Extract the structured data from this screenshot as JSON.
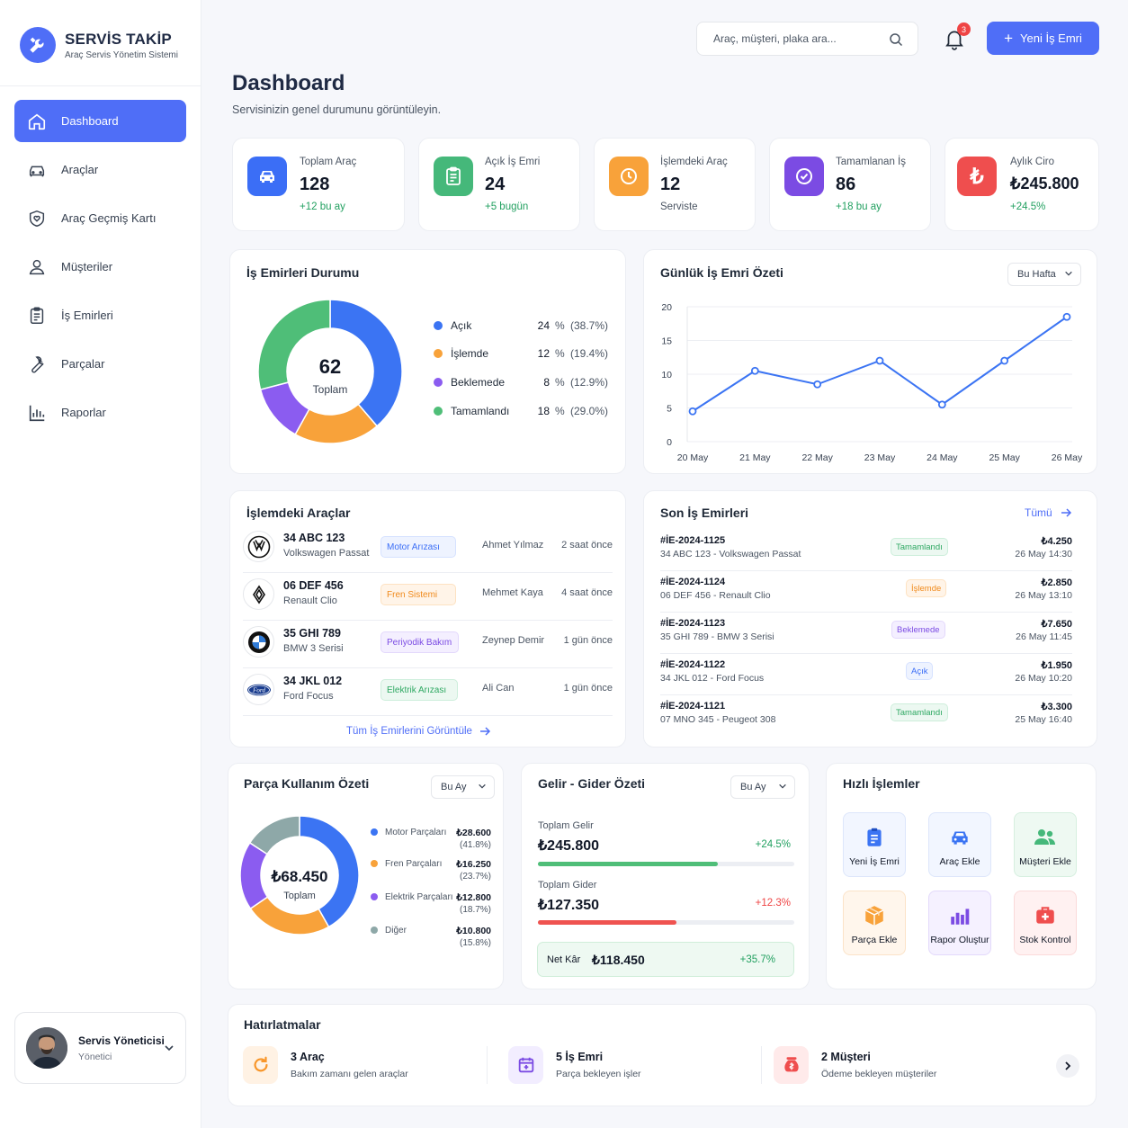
{
  "brand": {
    "title": "SERVİS TAKİP",
    "subtitle": "Araç Servis Yönetim Sistemi",
    "accent": "#4f6ef7"
  },
  "nav": [
    {
      "label": "Dashboard",
      "icon": "home-icon",
      "active": true
    },
    {
      "label": "Araçlar",
      "icon": "car-icon"
    },
    {
      "label": "Araç Geçmiş Kartı",
      "icon": "shield-heart-icon"
    },
    {
      "label": "Müşteriler",
      "icon": "user-icon"
    },
    {
      "label": "İş Emirleri",
      "icon": "clipboard-icon"
    },
    {
      "label": "Parçalar",
      "icon": "wrench-icon"
    },
    {
      "label": "Raporlar",
      "icon": "bar-chart-icon"
    }
  ],
  "user": {
    "name": "Servis Yöneticisi",
    "role": "Yönetici"
  },
  "search": {
    "placeholder": "Araç, müşteri, plaka ara..."
  },
  "notifications": {
    "count": "3"
  },
  "new_order_label": "Yeni İş Emri",
  "page": {
    "title": "Dashboard",
    "subtitle": "Servisinizin genel durumunu görüntüleyin."
  },
  "stats": [
    {
      "label": "Toplam Araç",
      "value": "128",
      "delta": "+12 bu ay",
      "color": "#3b6ef6",
      "icon": "car-icon"
    },
    {
      "label": "Açık İş Emri",
      "value": "24",
      "delta": "+5 bugün",
      "color": "#45b87a",
      "icon": "clipboard-icon"
    },
    {
      "label": "İşlemdeki Araç",
      "value": "12",
      "delta": "Serviste",
      "color": "#f8a23a",
      "icon": "clock-icon"
    },
    {
      "label": "Tamamlanan İş",
      "value": "86",
      "delta": "+18 bu ay",
      "color": "#7b4be3",
      "icon": "check-circle-icon"
    },
    {
      "label": "Aylık Ciro",
      "value": "₺245.800",
      "delta": "+24.5%",
      "color": "#ef4e4e",
      "icon": "lira-icon"
    }
  ],
  "order_status": {
    "title": "İş Emirleri Durumu",
    "total": "62",
    "total_label": "Toplam",
    "items": [
      {
        "label": "Açık",
        "count": "24",
        "unit": "%",
        "pct": "(38.7%)",
        "color": "#3b74f3",
        "value": 24
      },
      {
        "label": "İşlemde",
        "count": "12",
        "unit": "%",
        "pct": "(19.4%)",
        "color": "#f8a23a",
        "value": 12
      },
      {
        "label": "Beklemede",
        "count": "8",
        "unit": "%",
        "pct": "(12.9%)",
        "color": "#8b5cf0",
        "value": 8
      },
      {
        "label": "Tamamlandı",
        "count": "18",
        "unit": "%",
        "pct": "(29.0%)",
        "color": "#4fbe78",
        "value": 18
      }
    ]
  },
  "chart_data": {
    "type": "line",
    "title": "Günlük İş Emri Özeti",
    "x": [
      "20 May",
      "21 May",
      "22 May",
      "23 May",
      "24 May",
      "25 May",
      "26 May"
    ],
    "series": [
      {
        "values": [
          4.5,
          10.5,
          8.5,
          12,
          5.5,
          12,
          18.5
        ]
      }
    ],
    "yticks": [
      "0",
      "5",
      "10",
      "15",
      "20"
    ],
    "ylim": [
      0,
      20
    ],
    "grid": true,
    "color": "#3b74f3"
  },
  "daily_period": "Bu Hafta",
  "vehicles": {
    "title": "İşlemdeki Araçlar",
    "rows": [
      {
        "plate": "34 ABC 123",
        "model": "Volkswagen Passat",
        "issue": "Motor Arızası",
        "person": "Ahmet Yılmaz",
        "time": "2 saat önce",
        "icon": "volkswagen-logo-icon"
      },
      {
        "plate": "06 DEF 456",
        "model": "Renault Clio",
        "issue": "Fren Sistemi",
        "person": "Mehmet Kaya",
        "time": "4 saat önce",
        "icon": "renault-logo-icon"
      },
      {
        "plate": "35 GHI 789",
        "model": "BMW 3 Serisi",
        "issue": "Periyodik Bakım",
        "person": "Zeynep Demir",
        "time": "1 gün önce",
        "icon": "bmw-logo-icon"
      },
      {
        "plate": "34 JKL 012",
        "model": "Ford Focus",
        "issue": "Elektrik Arızası",
        "person": "Ali Can",
        "time": "1 gün önce",
        "icon": "ford-logo-icon"
      }
    ],
    "link": "Tüm İş Emirlerini Görüntüle"
  },
  "recent_orders": {
    "title": "Son İş Emirleri",
    "link": "Tümü",
    "rows": [
      {
        "id": "#İE-2024-1125",
        "desc": "34 ABC 123 - Volkswagen Passat",
        "status": "Tamamlandı",
        "amount": "₺4.250",
        "date": "26 May 14:30"
      },
      {
        "id": "#İE-2024-1124",
        "desc": "06 DEF 456 - Renault Clio",
        "status": "İşlemde",
        "amount": "₺2.850",
        "date": "26 May 13:10"
      },
      {
        "id": "#İE-2024-1123",
        "desc": "35 GHI 789 - BMW 3 Serisi",
        "status": "Beklemede",
        "amount": "₺7.650",
        "date": "26 May 11:45"
      },
      {
        "id": "#İE-2024-1122",
        "desc": "34 JKL 012 - Ford Focus",
        "status": "Açık",
        "amount": "₺1.950",
        "date": "26 May 10:20"
      },
      {
        "id": "#İE-2024-1121",
        "desc": "07 MNO 345 - Peugeot 308",
        "status": "Tamamlandı",
        "amount": "₺3.300",
        "date": "25 May 16:40"
      }
    ]
  },
  "parts": {
    "title": "Parça Kullanım Özeti",
    "period": "Bu Ay",
    "total": "₺68.450",
    "total_label": "Toplam",
    "items": [
      {
        "label": "Motor Parçaları",
        "amount": "₺28.600",
        "pct": "(41.8%)",
        "color": "#3b74f3",
        "value": 41.8
      },
      {
        "label": "Fren Parçaları",
        "amount": "₺16.250",
        "pct": "(23.7%)",
        "color": "#f8a23a",
        "value": 23.7
      },
      {
        "label": "Elektrik Parçaları",
        "amount": "₺12.800",
        "pct": "(18.7%)",
        "color": "#8b5cf0",
        "value": 18.7
      },
      {
        "label": "Diğer",
        "amount": "₺10.800",
        "pct": "(15.8%)",
        "color": "#8ea8a8",
        "value": 15.8
      }
    ]
  },
  "finance": {
    "title": "Gelir - Gider Özeti",
    "period": "Bu Ay",
    "income_label": "Toplam Gelir",
    "income": "₺245.800",
    "income_delta": "+24.5%",
    "income_fill": 0.7,
    "expense_label": "Toplam Gider",
    "expense": "₺127.350",
    "expense_delta": "+12.3%",
    "expense_fill": 0.54,
    "net_label": "Net Kâr",
    "net": "₺118.450",
    "net_delta": "+35.7%"
  },
  "quick": {
    "title": "Hızlı İşlemler",
    "items": [
      {
        "label": "Yeni İş Emri",
        "icon": "clipboard-icon",
        "color": "#3b74f3"
      },
      {
        "label": "Araç Ekle",
        "icon": "car-icon",
        "color": "#3b74f3"
      },
      {
        "label": "Müşteri Ekle",
        "icon": "users-icon",
        "color": "#45b87a"
      },
      {
        "label": "Parça Ekle",
        "icon": "box-icon",
        "color": "#f8a23a"
      },
      {
        "label": "Rapor Oluştur",
        "icon": "bar-chart-icon",
        "color": "#7b4be3"
      },
      {
        "label": "Stok Kontrol",
        "icon": "first-aid-box-icon",
        "color": "#ef4e4e"
      }
    ]
  },
  "reminders": {
    "title": "Hatırlatmalar",
    "items": [
      {
        "title": "3 Araç",
        "sub": "Bakım zamanı gelen araçlar",
        "icon": "refresh-icon"
      },
      {
        "title": "5 İş Emri",
        "sub": "Parça bekleyen işler",
        "icon": "calendar-plus-icon"
      },
      {
        "title": "2 Müşteri",
        "sub": "Ödeme bekleyen müşteriler",
        "icon": "money-bag-icon"
      }
    ]
  }
}
